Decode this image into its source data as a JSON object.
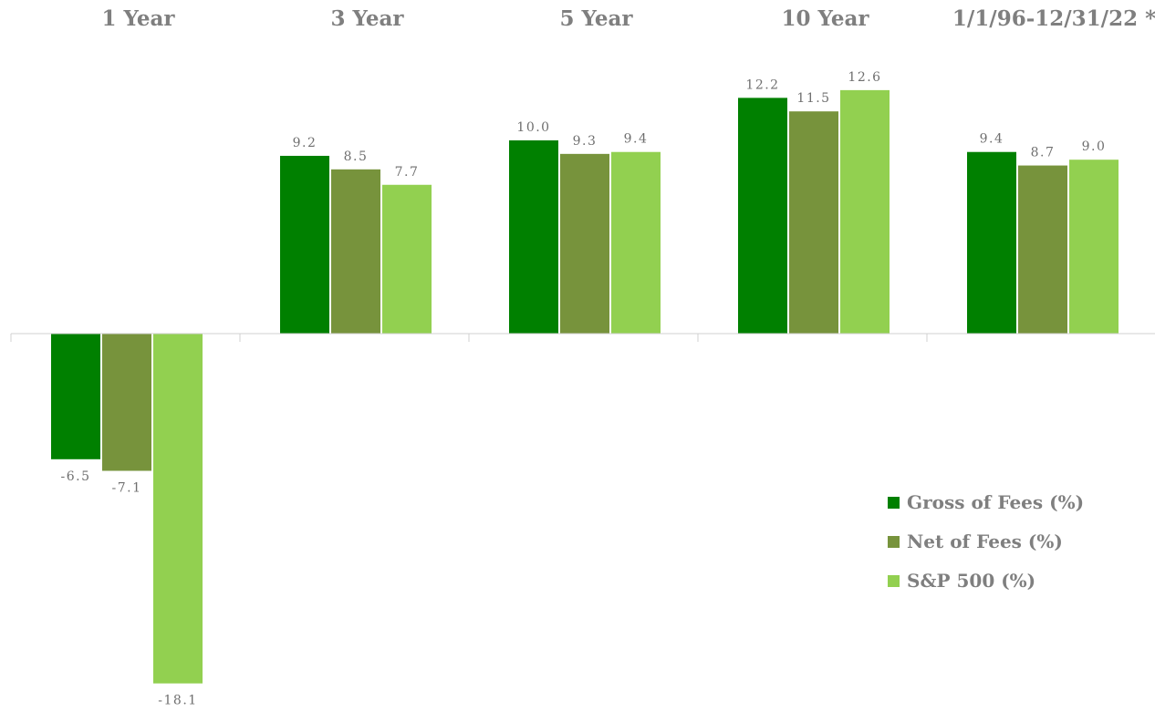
{
  "chart_data": {
    "type": "bar",
    "categories": [
      "1 Year",
      "3 Year",
      "5 Year",
      "10 Year",
      "1/1/96-12/31/22 *"
    ],
    "series": [
      {
        "name": "Gross of Fees (%)",
        "values": [
          -6.5,
          9.2,
          10.0,
          12.2,
          9.4
        ],
        "labels": [
          "-6.5",
          "9.2",
          "10.0",
          "12.2",
          "9.4"
        ],
        "color": "#008000"
      },
      {
        "name": "Net of Fees (%)",
        "values": [
          -7.1,
          8.5,
          9.3,
          11.5,
          8.7
        ],
        "labels": [
          "-7.1",
          "8.5",
          "9.3",
          "11.5",
          "8.7"
        ],
        "color": "#77933c"
      },
      {
        "name": "S&P 500 (%)",
        "values": [
          -18.1,
          7.7,
          9.4,
          12.6,
          9.0
        ],
        "labels": [
          "-18.1",
          "7.7",
          "9.4",
          "12.6",
          "9.0"
        ],
        "color": "#92d050"
      }
    ],
    "title": "",
    "xlabel": "",
    "ylabel": "",
    "ylim": [
      -18.1,
      12.6
    ],
    "grid": false,
    "legend": "bottom-right",
    "category_labels_position": "top"
  }
}
